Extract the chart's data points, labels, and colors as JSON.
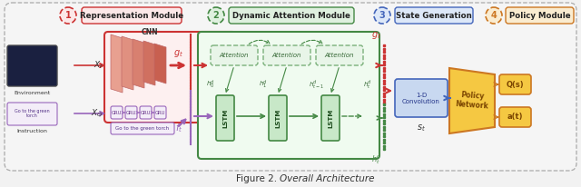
{
  "bg_color": "#f2f2f2",
  "figsize": [
    6.4,
    2.06
  ],
  "dpi": 100,
  "modules": [
    {
      "num": "1",
      "label": "Representation Module",
      "num_color": "#cc3333",
      "box_color": "#fce8e8",
      "border_color": "#cc3333"
    },
    {
      "num": "2",
      "label": "Dynamic Attention Module",
      "num_color": "#448844",
      "box_color": "#dff0df",
      "border_color": "#448844"
    },
    {
      "num": "3",
      "label": "State Generation",
      "num_color": "#4466bb",
      "box_color": "#dde8f8",
      "border_color": "#4466bb"
    },
    {
      "num": "4",
      "label": "Policy Module",
      "num_color": "#cc7722",
      "box_color": "#faecd0",
      "border_color": "#cc7722"
    }
  ],
  "caption_normal": "Figure 2. ",
  "caption_italic": "Overall Architecture"
}
